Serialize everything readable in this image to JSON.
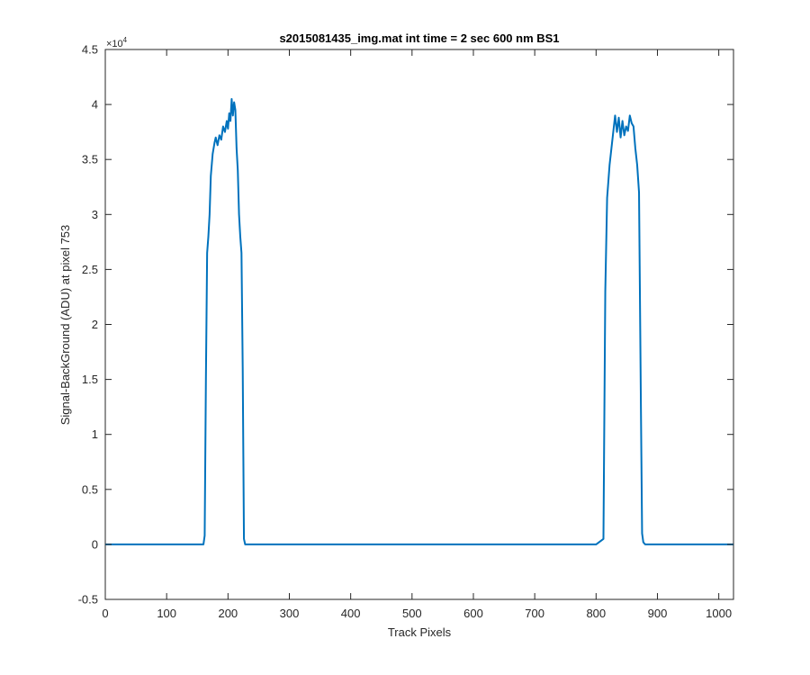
{
  "chart_data": {
    "type": "line",
    "title": "s2015081435_img.mat int time = 2 sec  600 nm BS1",
    "xlabel": "Track Pixels",
    "ylabel": "Signal-BackGround (ADU) at pixel 753",
    "xlim": [
      0,
      1024
    ],
    "ylim": [
      -0.5,
      4.5
    ],
    "y_scale_factor_label": "×10",
    "y_scale_factor_exponent": "4",
    "x_ticks": [
      "0",
      "100",
      "200",
      "300",
      "400",
      "500",
      "600",
      "700",
      "800",
      "900",
      "1000"
    ],
    "y_ticks": [
      "-0.5",
      "0",
      "0.5",
      "1",
      "1.5",
      "2",
      "2.5",
      "3",
      "3.5",
      "4",
      "4.5"
    ],
    "grid": false,
    "line_color": "#0072BD",
    "series": [
      {
        "x": [
          0,
          160,
          162,
          164,
          166,
          168,
          170,
          172,
          175,
          178,
          180,
          183,
          186,
          189,
          192,
          195,
          198,
          200,
          202,
          204,
          206,
          208,
          210,
          212,
          214,
          216,
          218,
          220,
          222,
          224,
          226,
          228,
          232,
          800,
          812,
          815,
          818,
          820,
          822,
          825,
          828,
          831,
          834,
          837,
          840,
          843,
          846,
          849,
          852,
          855,
          858,
          861,
          864,
          867,
          870,
          873,
          875,
          877,
          880,
          1024
        ],
        "y": [
          0.0,
          0.0,
          0.08,
          1.5,
          2.65,
          2.8,
          3.0,
          3.35,
          3.55,
          3.65,
          3.7,
          3.63,
          3.72,
          3.68,
          3.8,
          3.75,
          3.85,
          3.78,
          3.92,
          3.85,
          4.05,
          3.9,
          4.02,
          3.95,
          3.6,
          3.4,
          3.0,
          2.8,
          2.65,
          1.6,
          0.05,
          0.0,
          0.0,
          0.0,
          0.05,
          2.3,
          3.15,
          3.3,
          3.45,
          3.6,
          3.75,
          3.9,
          3.75,
          3.88,
          3.7,
          3.85,
          3.72,
          3.8,
          3.76,
          3.9,
          3.83,
          3.8,
          3.6,
          3.45,
          3.2,
          1.3,
          0.1,
          0.02,
          0.0,
          0.0
        ]
      }
    ]
  }
}
